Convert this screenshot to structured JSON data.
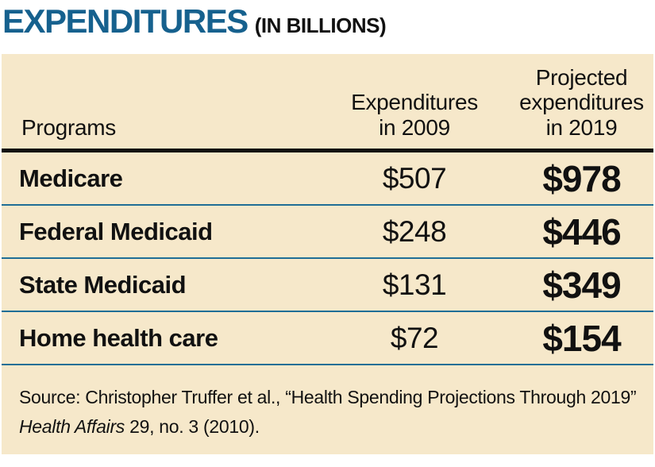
{
  "title": {
    "main": "EXPENDITURES",
    "suffix": "(IN BILLIONS)"
  },
  "colors": {
    "accent_blue": "#16618e",
    "table_background": "#f6e8ca",
    "divider_teal": "#1f6e96",
    "header_rule_black": "#111111",
    "text_black": "#111111"
  },
  "table": {
    "header": {
      "col1": "Programs",
      "col2": "Expenditures\nin 2009",
      "col3": "Projected\nexpenditures\nin 2019"
    },
    "rows": [
      {
        "program": "Medicare",
        "expenditures_2009": "$507",
        "projected_2019": "$978"
      },
      {
        "program": "Federal Medicaid",
        "expenditures_2009": "$248",
        "projected_2019": "$446"
      },
      {
        "program": "State Medicaid",
        "expenditures_2009": "$131",
        "projected_2019": "$349"
      },
      {
        "program": "Home health care",
        "expenditures_2009": "$72",
        "projected_2019": "$154"
      }
    ]
  },
  "source": {
    "line1": "Source: Christopher Truffer et al., “Health Spending Projections Through 2019”",
    "line2_italic": "Health Affairs",
    "line2_rest": " 29, no. 3 (2010)."
  },
  "chart_data": {
    "type": "table",
    "title": "EXPENDITURES (IN BILLIONS)",
    "units": "billions of US dollars",
    "categories": [
      "Medicare",
      "Federal Medicaid",
      "State Medicaid",
      "Home health care"
    ],
    "series": [
      {
        "name": "Expenditures in 2009",
        "values": [
          507,
          248,
          131,
          72
        ]
      },
      {
        "name": "Projected expenditures in 2019",
        "values": [
          978,
          446,
          349,
          154
        ]
      }
    ],
    "source": "Christopher Truffer et al., “Health Spending Projections Through 2019” Health Affairs 29, no. 3 (2010)."
  }
}
